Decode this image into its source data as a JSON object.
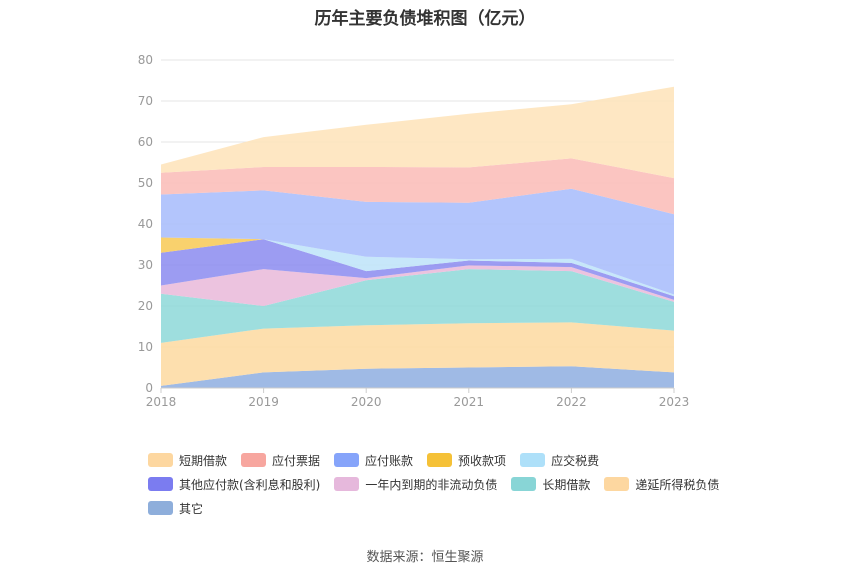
{
  "chart_data": {
    "type": "area",
    "title": "历年主要负债堆积图（亿元）",
    "categories": [
      "2018",
      "2019",
      "2020",
      "2021",
      "2022",
      "2023"
    ],
    "ylim": [
      0,
      80
    ],
    "yticks": [
      0,
      10,
      20,
      30,
      40,
      50,
      60,
      70,
      80
    ],
    "stacked": true,
    "grid": true,
    "legend_position": "bottom",
    "series": [
      {
        "name": "其它",
        "color": "#8eaee0",
        "values": [
          0.5,
          3.8,
          4.7,
          5.0,
          5.3,
          3.8
        ]
      },
      {
        "name": "递延所得税负债",
        "color": "#fdd9a0",
        "values": [
          10.5,
          10.7,
          10.6,
          10.8,
          10.7,
          10.2
        ]
      },
      {
        "name": "长期借款",
        "color": "#8dd8d8",
        "values": [
          12.0,
          5.5,
          11.0,
          13.2,
          12.5,
          7.0
        ]
      },
      {
        "name": "一年内到期的非流动负债",
        "color": "#e9b9d9",
        "values": [
          2.0,
          9.0,
          0.5,
          0.9,
          1.0,
          0.5
        ]
      },
      {
        "name": "其他应付款(含利息和股利)",
        "color": "#8b8bf0",
        "values": [
          8.0,
          7.3,
          1.7,
          1.2,
          1.0,
          0.9
        ]
      },
      {
        "name": "应交税费",
        "color": "#bde3f9",
        "values": [
          0.0,
          0.0,
          3.5,
          0.3,
          1.0,
          0.4
        ]
      },
      {
        "name": "预收款项",
        "color": "#f8c954",
        "values": [
          3.7,
          0.0,
          0.0,
          0.0,
          0.0,
          0.0
        ]
      },
      {
        "name": "应付账款",
        "color": "#a6bbfc",
        "values": [
          10.5,
          11.9,
          13.4,
          13.8,
          17.1,
          19.6
        ]
      },
      {
        "name": "应付票据",
        "color": "#fabbb6",
        "values": [
          5.3,
          5.7,
          8.5,
          8.6,
          7.4,
          8.8
        ]
      },
      {
        "name": "短期借款",
        "color": "#fee3b8",
        "values": [
          2.0,
          7.3,
          10.3,
          13.1,
          13.2,
          22.3
        ]
      }
    ]
  },
  "legend": {
    "rows": [
      [
        {
          "label": "短期借款",
          "color": "#fdd7a0"
        },
        {
          "label": "应付票据",
          "color": "#f7a69f"
        },
        {
          "label": "应付账款",
          "color": "#86a4fa"
        },
        {
          "label": "预收款项",
          "color": "#f5c137"
        },
        {
          "label": "应交税费",
          "color": "#aee0f9"
        }
      ],
      [
        {
          "label": "其他应付款(含利息和股利)",
          "color": "#7b7cf0"
        },
        {
          "label": "一年内到期的非流动负债",
          "color": "#e6b8dc"
        },
        {
          "label": "长期借款",
          "color": "#88d5d6"
        },
        {
          "label": "递延所得税负债",
          "color": "#fdd7a0"
        }
      ],
      [
        {
          "label": "其它",
          "color": "#8eaedb"
        }
      ]
    ]
  },
  "source": "数据来源：恒生聚源"
}
